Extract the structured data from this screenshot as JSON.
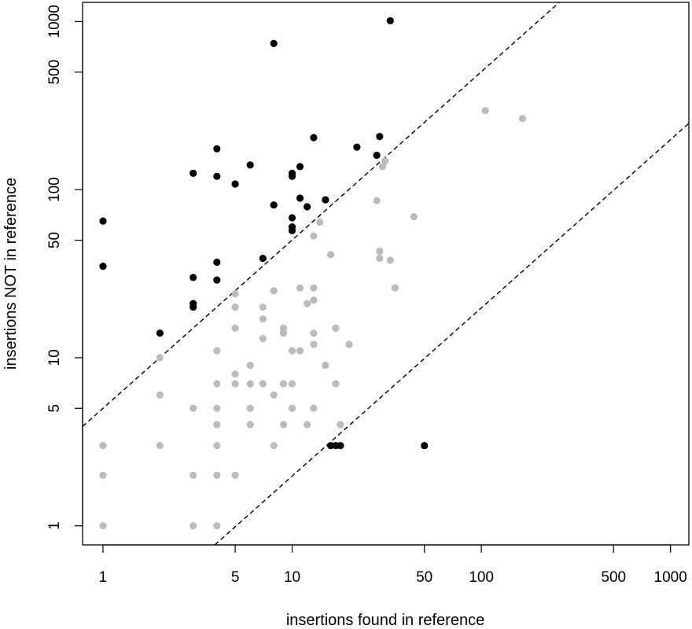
{
  "chart_data": {
    "type": "scatter",
    "title": "",
    "xlabel": "insertions found in reference",
    "ylabel": "insertions NOT in reference",
    "x_scale": "log",
    "y_scale": "log",
    "xlim": [
      0.78,
      1250
    ],
    "ylim": [
      0.77,
      1300
    ],
    "x_ticks": [
      1,
      5,
      10,
      50,
      100,
      500,
      1000
    ],
    "x_tick_labels": [
      "1",
      "5",
      "10",
      "50",
      "100",
      "500",
      "1000"
    ],
    "y_ticks": [
      1,
      5,
      10,
      50,
      100,
      500,
      1000
    ],
    "y_tick_labels": [
      "1",
      "5",
      "10",
      "50",
      "100",
      "500",
      "1000"
    ],
    "grid": false,
    "legend": "none",
    "reference_lines": [
      {
        "style": "dashed",
        "color": "#000000",
        "points": [
          [
            0.78,
            3.9
          ],
          [
            1250,
            6300
          ]
        ]
      },
      {
        "style": "dashed",
        "color": "#000000",
        "points": [
          [
            3.9,
            0.77
          ],
          [
            6300,
            1250
          ]
        ]
      }
    ],
    "series": [
      {
        "color": "#000000",
        "points": [
          [
            1,
            65
          ],
          [
            1,
            35
          ],
          [
            2,
            14
          ],
          [
            3,
            125
          ],
          [
            3,
            30
          ],
          [
            3,
            21
          ],
          [
            3,
            20
          ],
          [
            4,
            175
          ],
          [
            4,
            120
          ],
          [
            4,
            37
          ],
          [
            4,
            29
          ],
          [
            5,
            108
          ],
          [
            6,
            140
          ],
          [
            7,
            39
          ],
          [
            8,
            740
          ],
          [
            8,
            81
          ],
          [
            10,
            125
          ],
          [
            10,
            120
          ],
          [
            10,
            68
          ],
          [
            10,
            60
          ],
          [
            10,
            57
          ],
          [
            11,
            137
          ],
          [
            11,
            89
          ],
          [
            12,
            79
          ],
          [
            13,
            204
          ],
          [
            15,
            87
          ],
          [
            16,
            3
          ],
          [
            17,
            3
          ],
          [
            18,
            3
          ],
          [
            22,
            179
          ],
          [
            28,
            160
          ],
          [
            29,
            207
          ],
          [
            33,
            1010
          ],
          [
            50,
            3
          ]
        ]
      },
      {
        "color": "#bbbbbb",
        "points": [
          [
            1,
            3
          ],
          [
            1,
            2
          ],
          [
            1,
            1
          ],
          [
            2,
            10
          ],
          [
            2,
            6
          ],
          [
            2,
            3
          ],
          [
            3,
            5
          ],
          [
            3,
            2
          ],
          [
            3,
            1
          ],
          [
            4,
            11
          ],
          [
            4,
            7
          ],
          [
            4,
            5
          ],
          [
            4,
            4
          ],
          [
            4,
            3
          ],
          [
            4,
            2
          ],
          [
            4,
            1
          ],
          [
            5,
            24
          ],
          [
            5,
            20
          ],
          [
            5,
            15
          ],
          [
            5,
            8
          ],
          [
            5,
            7
          ],
          [
            5,
            2
          ],
          [
            6,
            9
          ],
          [
            6,
            7
          ],
          [
            6,
            5
          ],
          [
            6,
            4
          ],
          [
            7,
            20
          ],
          [
            7,
            17
          ],
          [
            7,
            13
          ],
          [
            7,
            7
          ],
          [
            8,
            25
          ],
          [
            8,
            6
          ],
          [
            8,
            3
          ],
          [
            9,
            15
          ],
          [
            9,
            14
          ],
          [
            9,
            7
          ],
          [
            9,
            4
          ],
          [
            10,
            11
          ],
          [
            10,
            7
          ],
          [
            10,
            5
          ],
          [
            11,
            26
          ],
          [
            11,
            11
          ],
          [
            12,
            21
          ],
          [
            12,
            4
          ],
          [
            13,
            53
          ],
          [
            13,
            26
          ],
          [
            13,
            22
          ],
          [
            13,
            14
          ],
          [
            13,
            12
          ],
          [
            13,
            5
          ],
          [
            14,
            64
          ],
          [
            15,
            9
          ],
          [
            16,
            41
          ],
          [
            17,
            15
          ],
          [
            17,
            7
          ],
          [
            18,
            4
          ],
          [
            20,
            12
          ],
          [
            28,
            86
          ],
          [
            29,
            43
          ],
          [
            29,
            39
          ],
          [
            30,
            137
          ],
          [
            31,
            148
          ],
          [
            33,
            38
          ],
          [
            35,
            26
          ],
          [
            44,
            69
          ],
          [
            105,
            295
          ],
          [
            165,
            265
          ]
        ]
      }
    ]
  }
}
